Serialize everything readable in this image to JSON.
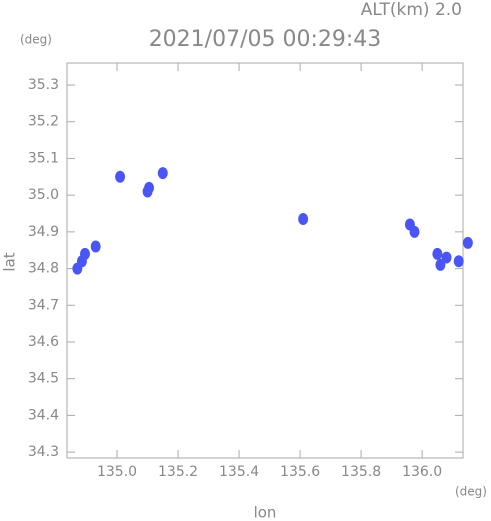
{
  "chart_data": {
    "type": "scatter",
    "title": "2021/07/05 00:29:43",
    "subtitle": "ALT(km) 2.0",
    "y_unit": "(deg)",
    "x_unit": "(deg)",
    "xlabel": "lon",
    "ylabel": "lat",
    "xlim": [
      134.836,
      136.134
    ],
    "ylim": [
      34.284,
      35.36
    ],
    "xticks": [
      {
        "value": 135,
        "label": "135.0"
      },
      135.2,
      135.4,
      135.6,
      135.8,
      {
        "value": 136,
        "label": "136.0"
      }
    ],
    "yticks": [
      35.3,
      35.2,
      35.1,
      {
        "value": 35,
        "label": "35.0"
      },
      34.9,
      34.8,
      34.7,
      34.6,
      34.5,
      34.4,
      34.3
    ],
    "x": [
      134.87,
      134.885,
      134.895,
      134.93,
      135.01,
      135.1,
      135.105,
      135.15,
      135.61,
      135.96,
      135.975,
      136.05,
      136.08,
      136.06,
      136.12,
      136.15
    ],
    "values": [
      34.8,
      34.82,
      34.84,
      34.86,
      35.05,
      35.01,
      35.02,
      35.06,
      34.935,
      34.92,
      34.9,
      34.84,
      34.83,
      34.81,
      34.82,
      34.87
    ],
    "color": "#4a55f5"
  }
}
